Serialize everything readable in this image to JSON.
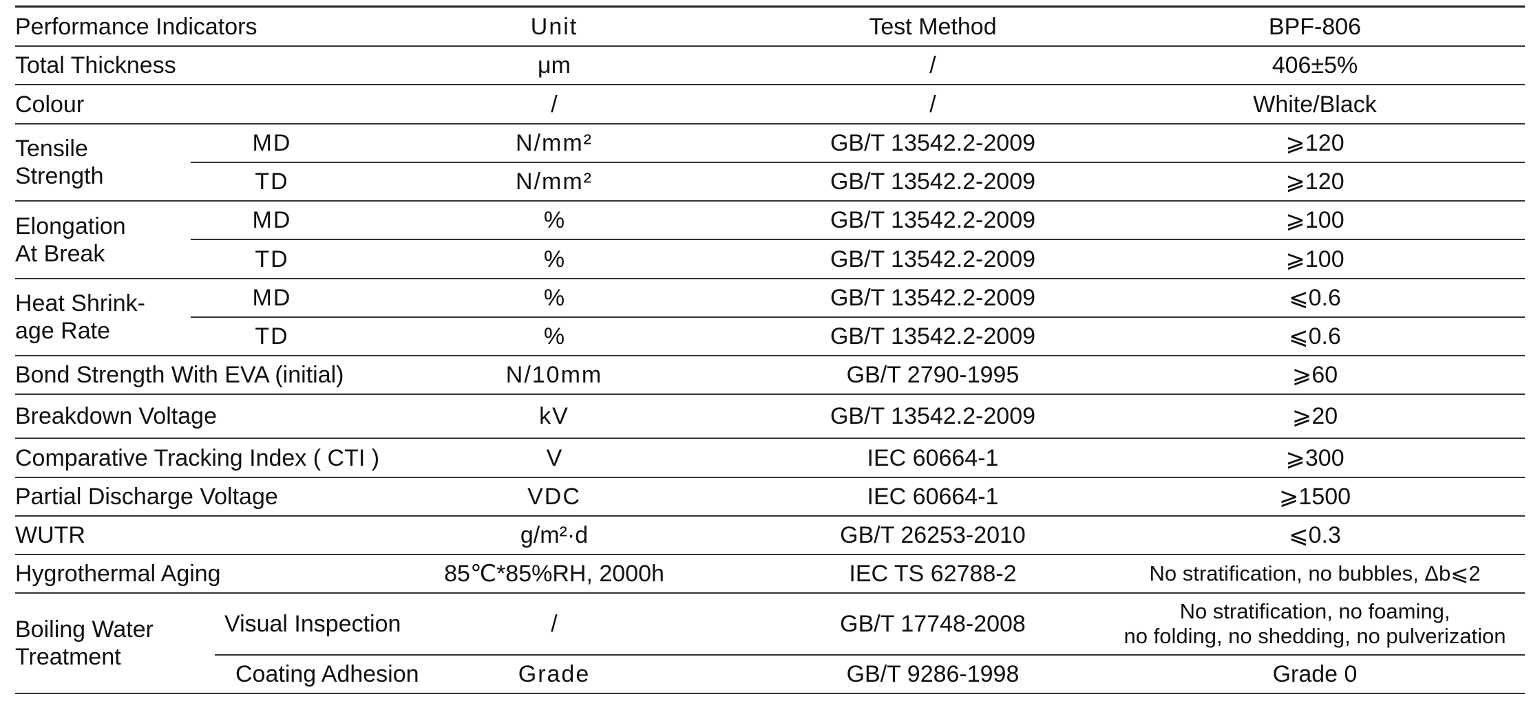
{
  "header": {
    "performance_indicators": "Performance Indicators",
    "unit": "Unit",
    "test_method": "Test Method",
    "product": "BPF-806"
  },
  "rows": {
    "total_thickness": {
      "name": "Total Thickness",
      "unit": "μm",
      "method": "/",
      "value": "406±5%"
    },
    "colour": {
      "name": "Colour",
      "unit": "/",
      "method": "/",
      "value": "White/Black"
    },
    "tensile_strength": {
      "name_line1": "Tensile",
      "name_line2": "Strength",
      "md": {
        "dir": "MD",
        "unit": "N/mm²",
        "method": "GB/T 13542.2-2009",
        "value": "⩾120"
      },
      "td": {
        "dir": "TD",
        "unit": "N/mm²",
        "method": "GB/T 13542.2-2009",
        "value": "⩾120"
      }
    },
    "elongation": {
      "name_line1": "Elongation",
      "name_line2": "At Break",
      "md": {
        "dir": "MD",
        "unit": "%",
        "method": "GB/T 13542.2-2009",
        "value": "⩾100"
      },
      "td": {
        "dir": "TD",
        "unit": "%",
        "method": "GB/T 13542.2-2009",
        "value": "⩾100"
      }
    },
    "heat_shrinkage": {
      "name_line1": "Heat Shrink-",
      "name_line2": "age Rate",
      "md": {
        "dir": "MD",
        "unit": "%",
        "method": "GB/T 13542.2-2009",
        "value": "⩽0.6"
      },
      "td": {
        "dir": "TD",
        "unit": "%",
        "method": "GB/T 13542.2-2009",
        "value": "⩽0.6"
      }
    },
    "bond_strength": {
      "name": "Bond Strength With EVA (initial)",
      "unit": "N/10mm",
      "method": "GB/T 2790-1995",
      "value": "⩾60"
    },
    "breakdown_voltage": {
      "name": "Breakdown Voltage",
      "unit": "kV",
      "method": "GB/T 13542.2-2009",
      "value": "⩾20"
    },
    "cti": {
      "name": "Comparative Tracking Index ( CTI )",
      "unit": "V",
      "method": "IEC 60664-1",
      "value": "⩾300"
    },
    "partial_discharge": {
      "name": "Partial Discharge Voltage",
      "unit": "VDC",
      "method": "IEC 60664-1",
      "value": "⩾1500"
    },
    "wutr": {
      "name": "WUTR",
      "unit": "g/m²·d",
      "method": "GB/T 26253-2010",
      "value": "⩽0.3"
    },
    "hygrothermal": {
      "name": "Hygrothermal Aging",
      "unit": "85℃*85%RH, 2000h",
      "method": "IEC TS 62788-2",
      "value": "No stratification, no bubbles, Δb⩽2"
    },
    "boiling_water": {
      "name_line1": "Boiling Water",
      "name_line2": "Treatment",
      "visual": {
        "sub": "Visual Inspection",
        "unit": "/",
        "method": "GB/T 17748-2008",
        "value_line1": "No stratification, no foaming,",
        "value_line2": "no folding, no shedding, no pulverization"
      },
      "adhesion": {
        "sub": "Coating Adhesion",
        "unit": "Grade",
        "method": "GB/T 9286-1998",
        "value": "Grade 0"
      }
    }
  }
}
